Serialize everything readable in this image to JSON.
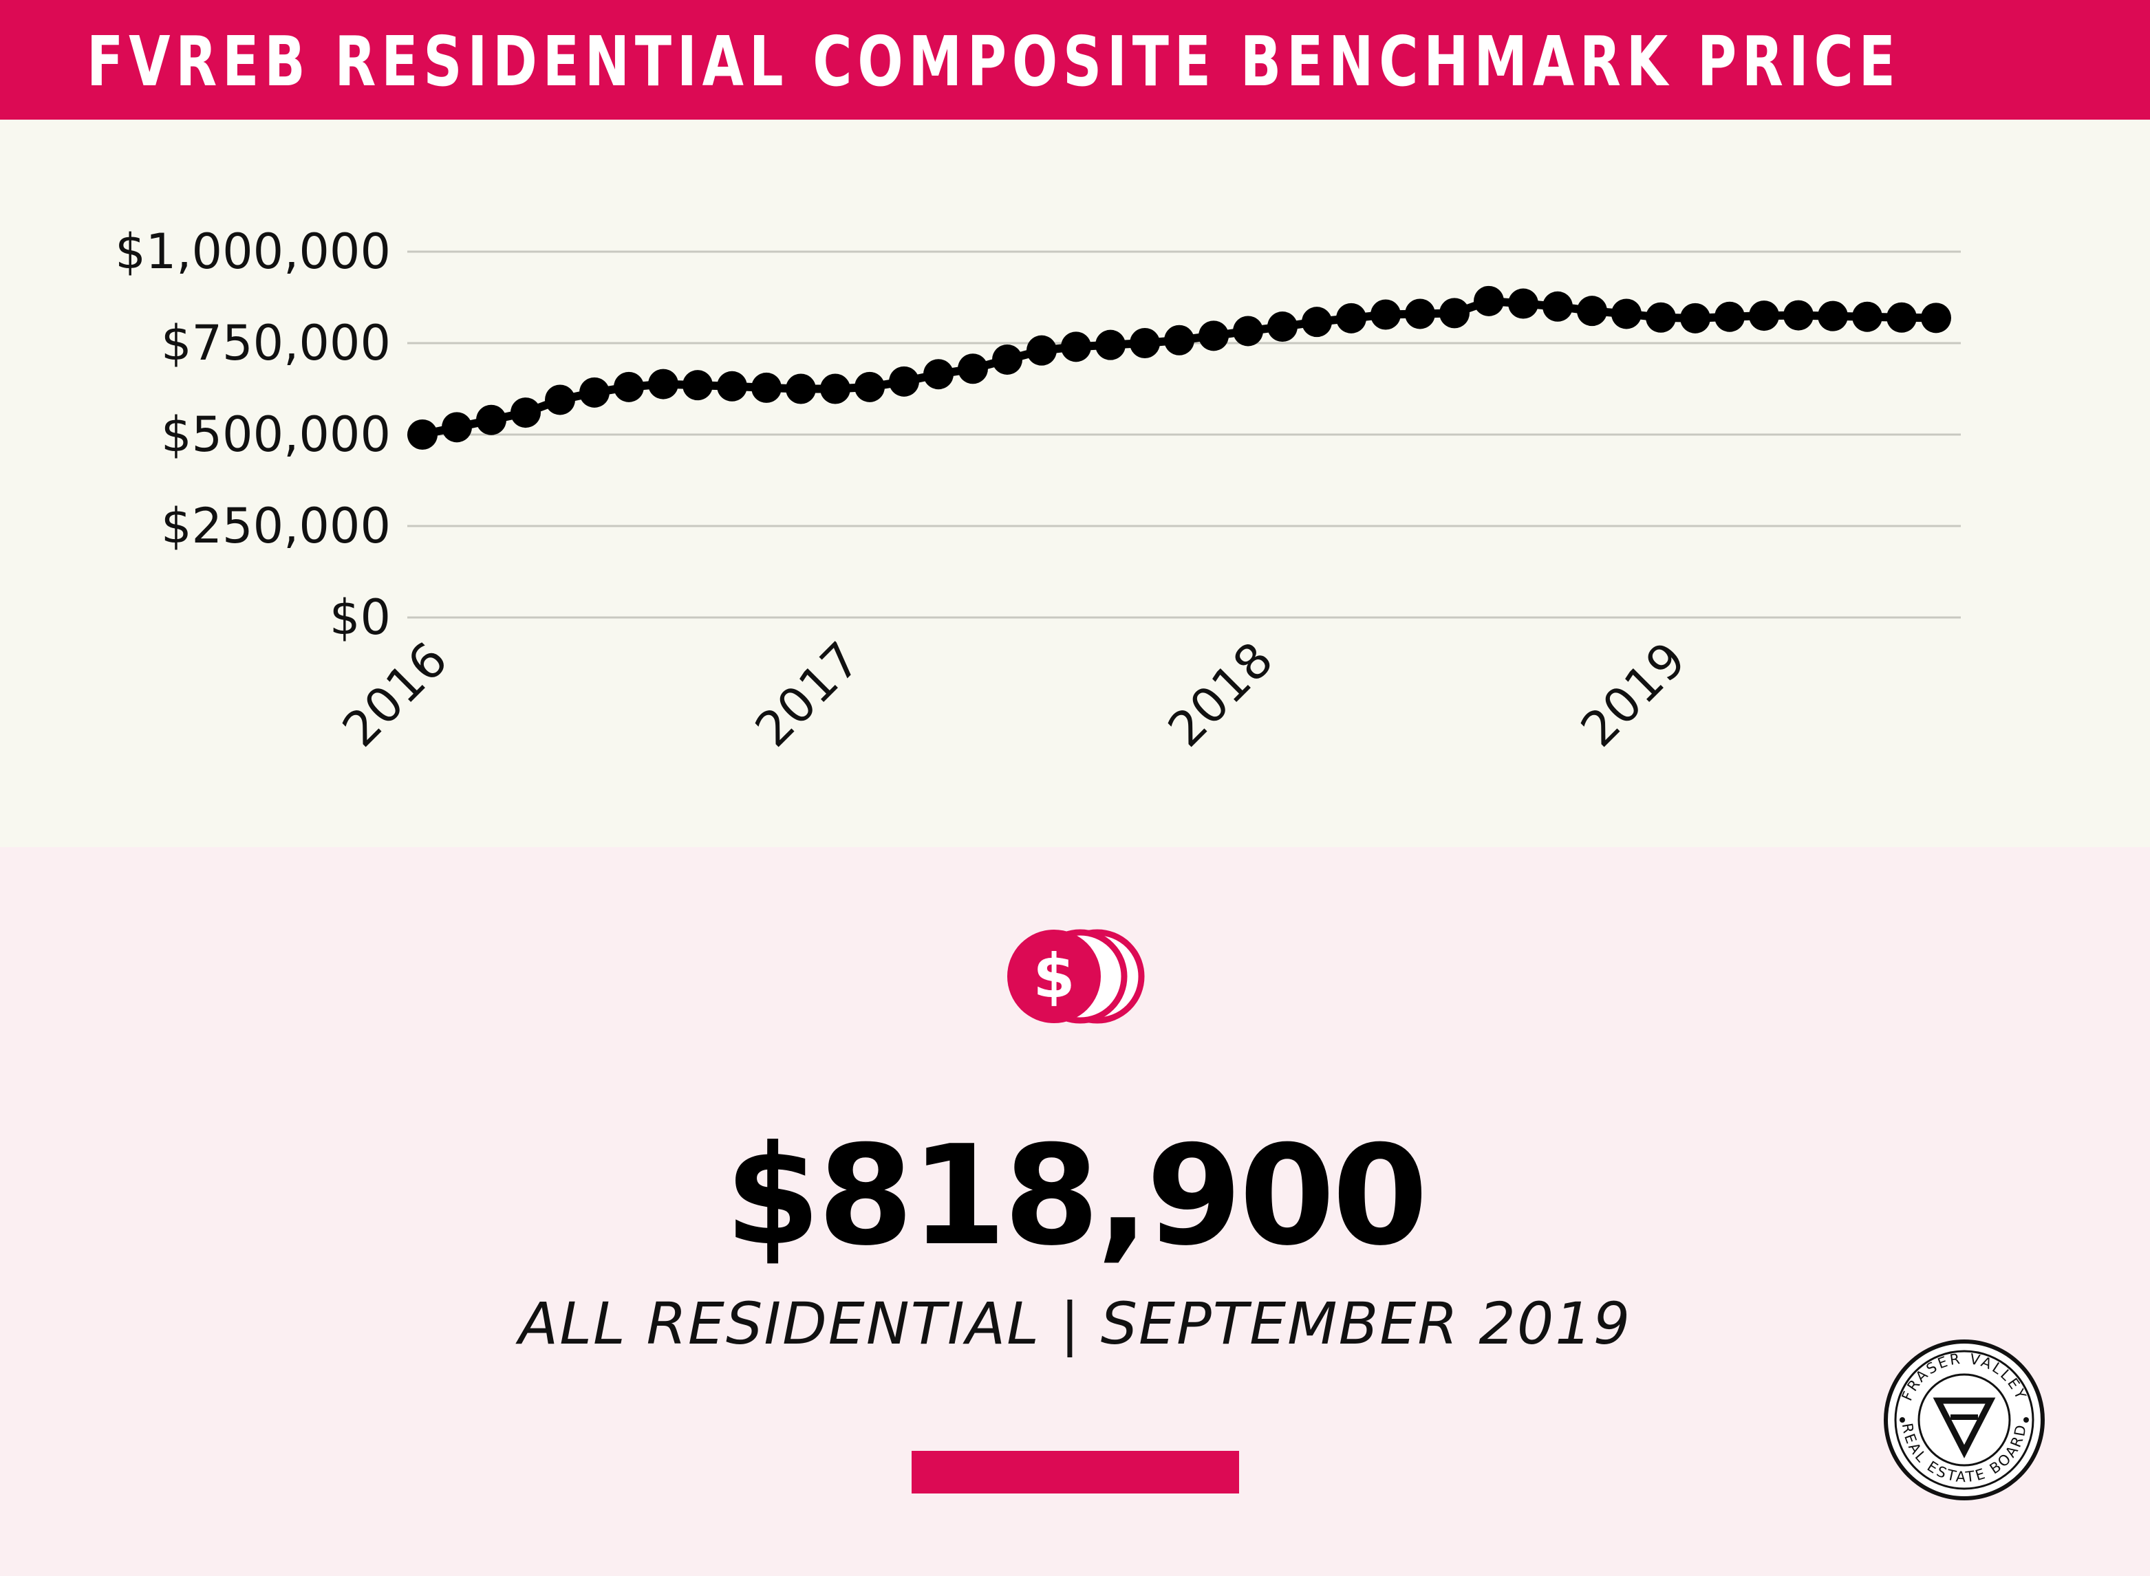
{
  "header": {
    "title": "FVREB RESIDENTIAL COMPOSITE BENCHMARK PRICE"
  },
  "colors": {
    "accent": "#dc0a54",
    "chart_bg": "#f8f8f0",
    "page_bg": "#fbeff2",
    "series": "#000000"
  },
  "chart_data": {
    "type": "line",
    "title": "",
    "xlabel": "",
    "ylabel": "",
    "x_ticks": [
      "2016",
      "2017",
      "2018",
      "2019"
    ],
    "y_ticks": [
      "$0",
      "$250,000",
      "$500,000",
      "$750,000",
      "$1,000,000"
    ],
    "ylim": [
      0,
      1000000
    ],
    "xlim": [
      "2016-01",
      "2019-09"
    ],
    "grid": true,
    "legend": "none",
    "series": [
      {
        "x": [
          "2016-01",
          "2016-02",
          "2016-03",
          "2016-04",
          "2016-05",
          "2016-06",
          "2016-07",
          "2016-08",
          "2016-09",
          "2016-10",
          "2016-11",
          "2016-12",
          "2017-01",
          "2017-02",
          "2017-03",
          "2017-04",
          "2017-05",
          "2017-06",
          "2017-07",
          "2017-08",
          "2017-09",
          "2017-10",
          "2017-11",
          "2017-12",
          "2018-01",
          "2018-02",
          "2018-03",
          "2018-04",
          "2018-05",
          "2018-06",
          "2018-07",
          "2018-08",
          "2018-09",
          "2018-10",
          "2018-11",
          "2018-12",
          "2019-01",
          "2019-02",
          "2019-03",
          "2019-04",
          "2019-05",
          "2019-06",
          "2019-07",
          "2019-08",
          "2019-09"
        ],
        "values": [
          500000,
          520000,
          540000,
          560000,
          595000,
          615000,
          630000,
          638000,
          635000,
          632000,
          628000,
          625000,
          625000,
          630000,
          645000,
          665000,
          680000,
          705000,
          730000,
          740000,
          745000,
          750000,
          758000,
          770000,
          783000,
          795000,
          808000,
          818000,
          828000,
          830000,
          832000,
          865000,
          858000,
          850000,
          838000,
          830000,
          820000,
          818000,
          822000,
          825000,
          826000,
          824000,
          822000,
          820000,
          818900
        ]
      }
    ]
  },
  "highlight": {
    "icon": "dollar-coins-icon",
    "value": "$818,900",
    "subtitle": "ALL RESIDENTIAL | SEPTEMBER 2019"
  },
  "logo": {
    "icon": "fraser-valley-real-estate-board-logo",
    "top_text": "FRASER VALLEY",
    "bottom_text": "REAL ESTATE BOARD"
  }
}
